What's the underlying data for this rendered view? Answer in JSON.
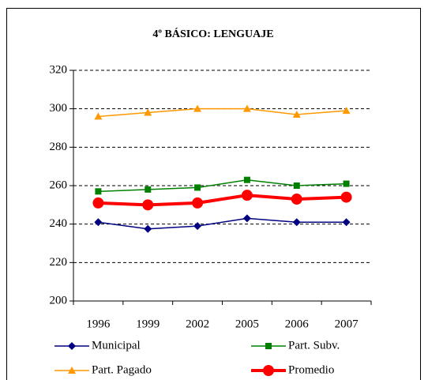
{
  "chart_data": {
    "type": "line",
    "title": "4º BÁSICO: LENGUAJE",
    "categories": [
      "1996",
      "1999",
      "2002",
      "2005",
      "2006",
      "2007"
    ],
    "series": [
      {
        "name": "Municipal",
        "color": "#000080",
        "marker": "diamond",
        "values": [
          241,
          237.5,
          239,
          243,
          241,
          241
        ]
      },
      {
        "name": "Part. Subv.",
        "color": "#008000",
        "marker": "square",
        "values": [
          257,
          258,
          259,
          263,
          260,
          261
        ]
      },
      {
        "name": "Part. Pagado",
        "color": "#ff9900",
        "marker": "triangle",
        "values": [
          296,
          298,
          300,
          300,
          297,
          299
        ]
      },
      {
        "name": "Promedio",
        "color": "#ff0000",
        "marker": "circle",
        "values": [
          251,
          250,
          251,
          255,
          253,
          254
        ]
      }
    ],
    "ylim": [
      200,
      320
    ],
    "yticks": [
      200,
      220,
      240,
      260,
      280,
      300,
      320
    ],
    "grid": true,
    "legend": "bottom"
  }
}
